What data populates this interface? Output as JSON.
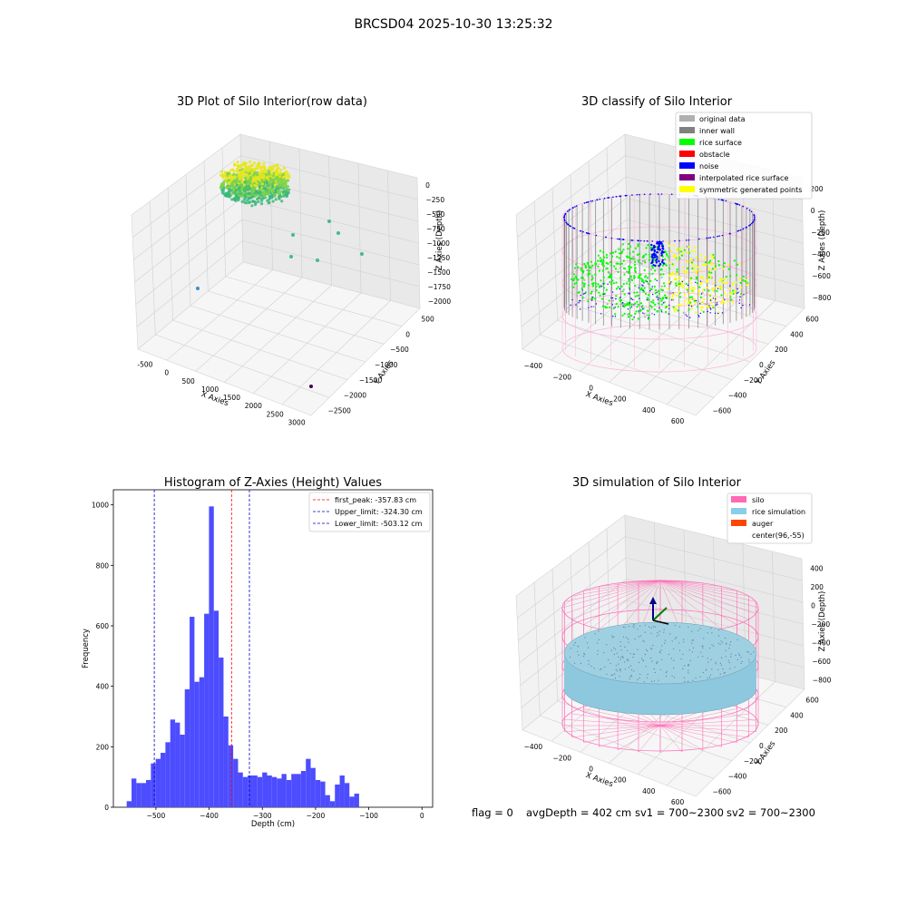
{
  "figure": {
    "title": "BRCSD04 2025-10-30 13:25:32",
    "footer": {
      "flag": "flag = 0",
      "avg_depth": "avgDepth = 402 cm",
      "sv1": "sv1 = 700~2300",
      "sv2": "sv2 = 700~2300"
    }
  },
  "chart_data": [
    {
      "type": "scatter",
      "title": "3D Plot of Silo Interior(row data)",
      "xlabel": "X Axies",
      "ylabel": "Y Axies",
      "zlabel": "Z Axies (Depth)",
      "x_ticks": [
        "-500",
        "0",
        "500",
        "1000",
        "1500",
        "2000",
        "2500",
        "3000"
      ],
      "y_ticks": [
        "500",
        "0",
        "−500",
        "−1000",
        "−1500",
        "−2000",
        "−2500"
      ],
      "z_ticks": [
        "0",
        "−250",
        "−500",
        "−750",
        "−1000",
        "−1250",
        "−1500",
        "−1750",
        "−2000"
      ],
      "colors": {
        "cluster_top": "#e6e61f",
        "cluster_mid": "#7cd24a",
        "cluster_low": "#3bb97a",
        "outlier_teal": "#45b69c",
        "outlier_blue": "#3e8fc0",
        "outlier_purple": "#440154"
      },
      "grid": true
    },
    {
      "type": "scatter",
      "title": "3D classify of Silo Interior",
      "xlabel": "X Axies",
      "ylabel": "Y Axies",
      "zlabel": "Z Axies (Depth)",
      "x_ticks": [
        "−400",
        "−200",
        "0",
        "200",
        "400",
        "600"
      ],
      "y_ticks": [
        "600",
        "400",
        "200",
        "0",
        "−200",
        "−400",
        "−600"
      ],
      "z_ticks": [
        "200",
        "0",
        "−200",
        "−400",
        "−600",
        "−800"
      ],
      "legend": [
        {
          "label": "original data",
          "color": "#b0b0b0"
        },
        {
          "label": "inner wall",
          "color": "#808080"
        },
        {
          "label": "rice surface",
          "color": "#00ff00"
        },
        {
          "label": "obstacle",
          "color": "#ff0000"
        },
        {
          "label": "noise",
          "color": "#0000ff"
        },
        {
          "label": "interpolated rice surface",
          "color": "#800080"
        },
        {
          "label": "symmetric generated points",
          "color": "#ffff00"
        }
      ],
      "extra_colors": {
        "silo_outline": "#ffb6d9"
      },
      "legend_position": "top-right",
      "grid": true
    },
    {
      "type": "bar",
      "title": "Histogram of Z-Axies (Height) Values",
      "xlabel": "Depth (cm)",
      "ylabel": "Frequency",
      "xlim": [
        -580,
        20
      ],
      "ylim": [
        0,
        1050
      ],
      "x_ticks": [
        -500,
        -400,
        -300,
        -200,
        -100,
        0
      ],
      "x_tick_labels": [
        "−500",
        "−400",
        "−300",
        "−200",
        "−100",
        "0"
      ],
      "y_ticks": [
        0,
        200,
        400,
        600,
        800,
        1000
      ],
      "bin_start": -555,
      "bin_width": 9.1,
      "values": [
        20,
        95,
        80,
        80,
        90,
        145,
        160,
        180,
        215,
        290,
        280,
        240,
        390,
        630,
        415,
        430,
        640,
        995,
        650,
        495,
        300,
        205,
        160,
        115,
        100,
        105,
        105,
        100,
        115,
        105,
        100,
        95,
        110,
        90,
        110,
        110,
        120,
        160,
        130,
        90,
        85,
        40,
        20,
        75,
        105,
        80,
        35,
        45
      ],
      "bar_color": "#4d4dff",
      "lines": [
        {
          "label": "first_peak: -357.83 cm",
          "x": -357.83,
          "color": "#ff0000"
        },
        {
          "label": "Upper_limit: -324.30 cm",
          "x": -324.3,
          "color": "#0000cc"
        },
        {
          "label": "Lower_limit: -503.12 cm",
          "x": -503.12,
          "color": "#0000cc"
        }
      ],
      "legend_position": "top-right",
      "grid": false
    },
    {
      "type": "scatter",
      "title": "3D simulation of Silo Interior",
      "xlabel": "X Axies",
      "ylabel": "Y Axies",
      "zlabel": "Z Axies (Depth)",
      "x_ticks": [
        "−400",
        "−200",
        "0",
        "200",
        "400",
        "600"
      ],
      "y_ticks": [
        "600",
        "400",
        "200",
        "0",
        "−200",
        "−400",
        "−600"
      ],
      "z_ticks": [
        "400",
        "200",
        "0",
        "−200",
        "−400",
        "−600",
        "−800"
      ],
      "legend": [
        {
          "label": "silo",
          "color": "#ff69b4"
        },
        {
          "label": "rice simulation",
          "color": "#87ceeb"
        },
        {
          "label": "auger",
          "color": "#ff4500"
        },
        {
          "label": "center(96,-55)",
          "color": ""
        }
      ],
      "extra_colors": {
        "rice_fill": "#8ec8de",
        "arrow_z": "#00008b",
        "arrow_y": "#008000",
        "arrow_x": "#000000"
      },
      "legend_position": "top-right",
      "grid": true
    }
  ]
}
